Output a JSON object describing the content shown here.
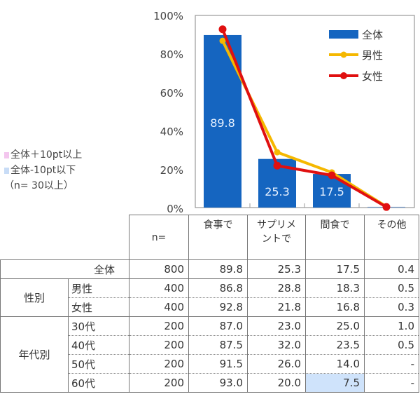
{
  "chart_data": {
    "type": "bar",
    "title": "",
    "xlabel": "",
    "ylabel": "",
    "ylim": [
      0,
      100
    ],
    "ytick_labels": [
      "0%",
      "20%",
      "40%",
      "60%",
      "80%",
      "100%"
    ],
    "categories": [
      "食事で",
      "サプリメントで",
      "間食で",
      "その他"
    ],
    "series": [
      {
        "name": "全体",
        "type": "bar",
        "color": "#1565c0",
        "values": [
          89.8,
          25.3,
          17.5,
          0.4
        ],
        "data_labels": [
          "89.8",
          "25.3",
          "17.5",
          ""
        ]
      },
      {
        "name": "男性",
        "type": "line",
        "color": "#f5b800",
        "values": [
          86.8,
          28.8,
          18.3,
          0.5
        ]
      },
      {
        "name": "女性",
        "type": "line",
        "color": "#e01010",
        "values": [
          92.8,
          21.8,
          16.8,
          0.3
        ]
      }
    ],
    "legend": {
      "position": "upper right",
      "entries": [
        "全体",
        "男性",
        "女性"
      ]
    },
    "grid": false
  },
  "note": {
    "plus_label": "全体＋10pt以上",
    "minus_label": "全体-10pt以下",
    "n_label": "（n= 30以上）",
    "plus_color": "#f3c6ee",
    "minus_color": "#c8dcf6"
  },
  "table": {
    "headers": {
      "n": "n=",
      "c1": "食事で",
      "c2a": "サプリメ",
      "c2b": "ントで",
      "c3": "間食で",
      "c4": "その他"
    },
    "rows": {
      "total": {
        "label": "全体",
        "n": "800",
        "v": [
          "89.8",
          "25.3",
          "17.5",
          "0.4"
        ]
      },
      "gender_group": "性別",
      "male": {
        "label": "男性",
        "n": "400",
        "v": [
          "86.8",
          "28.8",
          "18.3",
          "0.5"
        ]
      },
      "female": {
        "label": "女性",
        "n": "400",
        "v": [
          "92.8",
          "21.8",
          "16.8",
          "0.3"
        ]
      },
      "age_group": "年代別",
      "a30": {
        "label": "30代",
        "n": "200",
        "v": [
          "87.0",
          "23.0",
          "25.0",
          "1.0"
        ]
      },
      "a40": {
        "label": "40代",
        "n": "200",
        "v": [
          "87.5",
          "32.0",
          "23.5",
          "0.5"
        ]
      },
      "a50": {
        "label": "50代",
        "n": "200",
        "v": [
          "91.5",
          "26.0",
          "14.0",
          "-"
        ]
      },
      "a60": {
        "label": "60代",
        "n": "200",
        "v": [
          "93.0",
          "20.0",
          "7.5",
          "-"
        ]
      }
    }
  }
}
